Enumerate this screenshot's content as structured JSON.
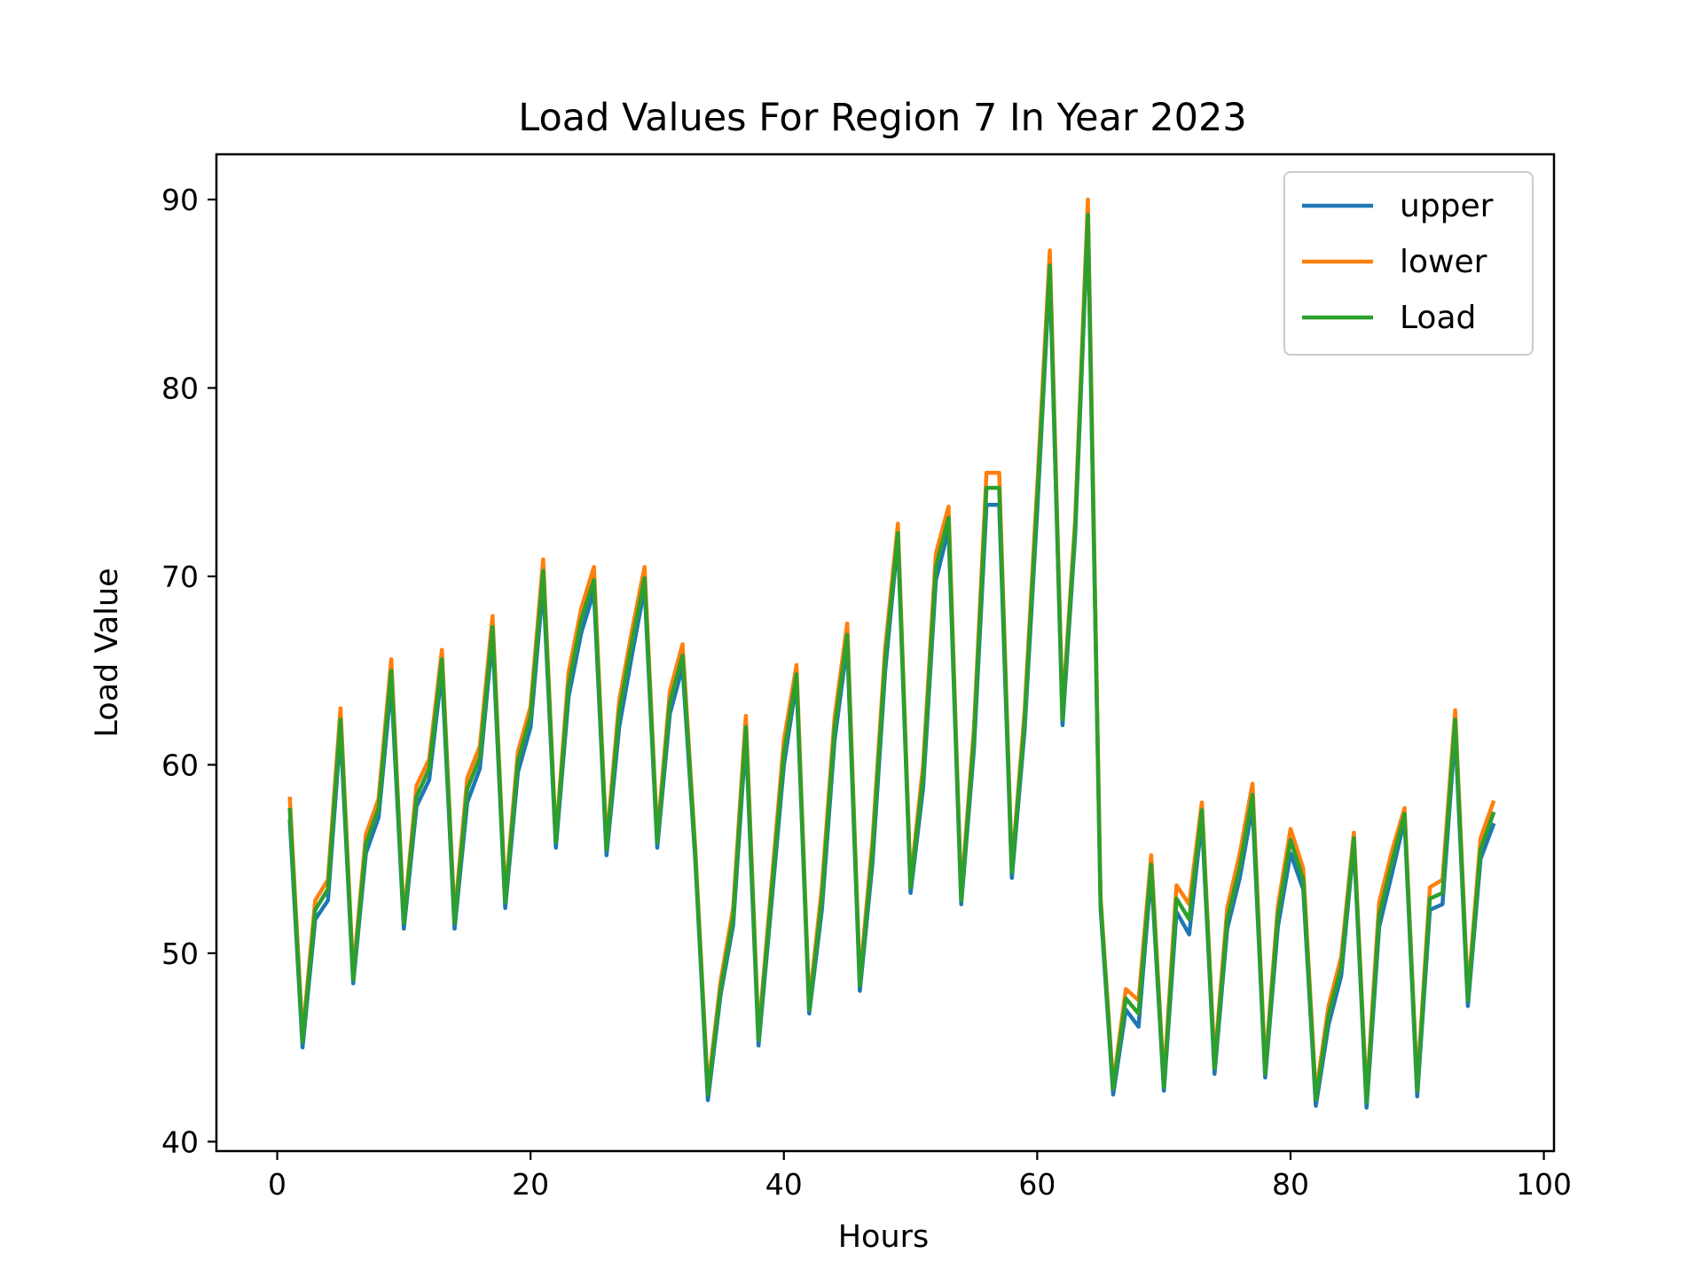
{
  "chart_data": {
    "type": "line",
    "title": "Load Values For Region 7 In Year 2023",
    "xlabel": "Hours",
    "ylabel": "Load Value",
    "xlim": [
      -4.8,
      100.8
    ],
    "ylim": [
      39.5,
      92.4
    ],
    "xticks": [
      0,
      20,
      40,
      60,
      80,
      100
    ],
    "yticks": [
      40,
      50,
      60,
      70,
      80,
      90
    ],
    "grid": false,
    "legend_position": "top-right",
    "x": [
      1,
      2,
      3,
      4,
      5,
      6,
      7,
      8,
      9,
      10,
      11,
      12,
      13,
      14,
      15,
      16,
      17,
      18,
      19,
      20,
      21,
      22,
      23,
      24,
      25,
      26,
      27,
      28,
      29,
      30,
      31,
      32,
      33,
      34,
      35,
      36,
      37,
      38,
      39,
      40,
      41,
      42,
      43,
      44,
      45,
      46,
      47,
      48,
      49,
      50,
      51,
      52,
      53,
      54,
      55,
      56,
      57,
      58,
      59,
      60,
      61,
      62,
      63,
      64,
      65,
      66,
      67,
      68,
      69,
      70,
      71,
      72,
      73,
      74,
      75,
      76,
      77,
      78,
      79,
      80,
      81,
      82,
      83,
      84,
      85,
      86,
      87,
      88,
      89,
      90,
      91,
      92,
      93,
      94,
      95,
      96
    ],
    "series": [
      {
        "name": "upper",
        "color": "#1f77b4",
        "values": [
          57.0,
          45.0,
          51.8,
          52.8,
          61.8,
          48.4,
          55.3,
          57.2,
          64.3,
          51.3,
          57.8,
          59.2,
          65.0,
          51.3,
          58.0,
          59.8,
          66.8,
          52.4,
          59.6,
          62.0,
          69.6,
          55.6,
          63.6,
          67.0,
          69.2,
          55.2,
          62.0,
          65.8,
          69.4,
          55.6,
          62.7,
          65.2,
          55.0,
          42.2,
          47.8,
          51.5,
          61.5,
          45.1,
          52.5,
          60.0,
          64.4,
          46.8,
          52.3,
          61.3,
          66.4,
          48.0,
          54.8,
          65.0,
          72.0,
          53.2,
          58.8,
          69.8,
          72.5,
          52.6,
          60.8,
          73.8,
          73.8,
          54.0,
          61.8,
          73.5,
          86.2,
          62.1,
          72.2,
          89.0,
          52.4,
          42.5,
          47.0,
          46.1,
          54.3,
          42.7,
          52.2,
          51.0,
          57.1,
          43.6,
          51.3,
          54.0,
          57.8,
          43.4,
          51.4,
          55.3,
          53.4,
          41.9,
          46.2,
          48.8,
          55.8,
          41.8,
          51.4,
          54.2,
          57.1,
          42.4,
          52.3,
          52.6,
          61.8,
          47.2,
          55.0,
          56.8
        ]
      },
      {
        "name": "lower",
        "color": "#ff7f0e",
        "values": [
          58.2,
          45.6,
          52.8,
          53.9,
          63.0,
          48.9,
          56.3,
          58.2,
          65.6,
          51.8,
          58.9,
          60.3,
          66.1,
          51.9,
          59.3,
          61.0,
          67.9,
          53.0,
          60.7,
          63.1,
          70.9,
          56.1,
          64.9,
          68.3,
          70.5,
          55.8,
          63.4,
          67.1,
          70.5,
          56.2,
          63.9,
          66.4,
          55.6,
          42.8,
          48.5,
          52.4,
          62.6,
          45.7,
          53.5,
          61.3,
          65.3,
          47.3,
          53.5,
          62.5,
          67.5,
          48.6,
          56.0,
          66.2,
          72.8,
          53.8,
          60.0,
          71.2,
          73.7,
          53.1,
          61.9,
          75.5,
          75.5,
          54.5,
          62.8,
          74.8,
          87.3,
          62.8,
          73.0,
          90.0,
          53.0,
          43.0,
          48.1,
          47.5,
          55.2,
          43.2,
          53.6,
          52.6,
          58.0,
          44.2,
          52.4,
          55.3,
          59.0,
          43.9,
          52.5,
          56.6,
          54.5,
          42.5,
          47.2,
          49.8,
          56.4,
          42.4,
          52.7,
          55.4,
          57.7,
          43.0,
          53.5,
          53.9,
          62.9,
          47.8,
          56.1,
          58.0
        ]
      },
      {
        "name": "Load",
        "color": "#2ca02c",
        "values": [
          57.6,
          45.3,
          52.3,
          53.4,
          62.4,
          48.6,
          55.8,
          57.7,
          65.0,
          51.6,
          58.3,
          59.8,
          65.6,
          51.6,
          58.7,
          60.4,
          67.3,
          52.7,
          60.2,
          62.6,
          70.3,
          55.9,
          64.2,
          67.7,
          69.8,
          55.5,
          62.8,
          66.5,
          69.9,
          55.9,
          63.3,
          65.8,
          55.3,
          42.5,
          48.1,
          51.9,
          62.0,
          45.4,
          53.0,
          60.6,
          64.8,
          47.0,
          52.9,
          61.9,
          66.9,
          48.3,
          55.4,
          65.6,
          72.3,
          53.5,
          59.4,
          70.5,
          73.1,
          52.8,
          61.4,
          74.7,
          74.7,
          54.3,
          62.3,
          74.1,
          86.5,
          62.4,
          72.6,
          89.2,
          52.7,
          42.8,
          47.6,
          46.8,
          54.7,
          42.9,
          52.9,
          51.8,
          57.6,
          43.9,
          51.8,
          54.6,
          58.4,
          43.6,
          52.0,
          56.0,
          53.9,
          42.2,
          46.7,
          49.3,
          56.1,
          42.1,
          52.0,
          54.8,
          57.4,
          42.7,
          52.9,
          53.2,
          62.4,
          47.5,
          55.5,
          57.4
        ]
      }
    ]
  }
}
